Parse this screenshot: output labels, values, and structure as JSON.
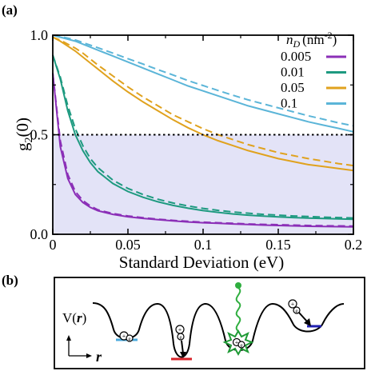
{
  "panel_a_label": "(a)",
  "panel_b_label": "(b)",
  "chart_data": {
    "type": "line",
    "title": "",
    "xlabel": "Standard Deviation (eV)",
    "ylabel_main": "g",
    "ylabel_sub": "2",
    "ylabel_tail": "(0)",
    "xlim": [
      0,
      0.2
    ],
    "ylim": [
      0,
      1.0
    ],
    "x_ticks": [
      0,
      0.05,
      0.1,
      0.15,
      0.2
    ],
    "x_tick_labels": [
      "0",
      "0.05",
      "0.1",
      "0.15",
      "0.2"
    ],
    "y_ticks": [
      0,
      0.5,
      1.0
    ],
    "y_tick_labels": [
      "0.0",
      "0.5",
      "1.0"
    ],
    "threshold": 0.5,
    "shaded_region": [
      0,
      0.5
    ],
    "shade_color": "#e3e3f7",
    "legend": {
      "title_main": "n",
      "title_sub": "D",
      "title_unit": "(nm",
      "title_exp": "-2",
      "title_close": ")",
      "placement": "top-right"
    },
    "x": [
      0,
      0.005,
      0.01,
      0.015,
      0.02,
      0.025,
      0.03,
      0.04,
      0.05,
      0.06,
      0.07,
      0.08,
      0.09,
      0.1,
      0.11,
      0.12,
      0.13,
      0.14,
      0.15,
      0.16,
      0.17,
      0.18,
      0.19,
      0.2
    ],
    "series": [
      {
        "name": "0.005",
        "color": "#8b2fb7",
        "solid": [
          0.81,
          0.44,
          0.28,
          0.2,
          0.16,
          0.135,
          0.118,
          0.1,
          0.088,
          0.08,
          0.073,
          0.067,
          0.062,
          0.058,
          0.055,
          0.052,
          0.049,
          0.046,
          0.044,
          0.042,
          0.04,
          0.039,
          0.038,
          0.037
        ],
        "dashed": [
          0.81,
          0.47,
          0.3,
          0.215,
          0.17,
          0.142,
          0.123,
          0.104,
          0.092,
          0.083,
          0.076,
          0.07,
          0.065,
          0.061,
          0.058,
          0.055,
          0.052,
          0.05,
          0.048,
          0.046,
          0.044,
          0.043,
          0.042,
          0.041
        ]
      },
      {
        "name": "0.01",
        "color": "#1e9a80",
        "solid": [
          0.9,
          0.78,
          0.62,
          0.5,
          0.42,
          0.36,
          0.315,
          0.255,
          0.215,
          0.186,
          0.163,
          0.145,
          0.131,
          0.119,
          0.11,
          0.102,
          0.096,
          0.091,
          0.087,
          0.084,
          0.081,
          0.079,
          0.077,
          0.075
        ],
        "dashed": [
          0.9,
          0.79,
          0.645,
          0.53,
          0.445,
          0.38,
          0.335,
          0.272,
          0.23,
          0.2,
          0.176,
          0.157,
          0.142,
          0.13,
          0.12,
          0.112,
          0.106,
          0.1,
          0.096,
          0.092,
          0.089,
          0.086,
          0.084,
          0.082
        ]
      },
      {
        "name": "0.05",
        "color": "#e0a21e",
        "solid": [
          0.99,
          0.97,
          0.945,
          0.92,
          0.89,
          0.86,
          0.83,
          0.77,
          0.715,
          0.665,
          0.62,
          0.575,
          0.535,
          0.5,
          0.47,
          0.445,
          0.42,
          0.4,
          0.38,
          0.365,
          0.35,
          0.34,
          0.33,
          0.32
        ],
        "dashed": [
          0.99,
          0.975,
          0.955,
          0.935,
          0.91,
          0.88,
          0.85,
          0.795,
          0.74,
          0.69,
          0.645,
          0.6,
          0.565,
          0.53,
          0.5,
          0.475,
          0.45,
          0.43,
          0.41,
          0.395,
          0.38,
          0.368,
          0.355,
          0.345
        ]
      },
      {
        "name": "0.1",
        "color": "#5bb5d8",
        "solid": [
          1.0,
          0.99,
          0.98,
          0.97,
          0.955,
          0.94,
          0.925,
          0.895,
          0.865,
          0.835,
          0.805,
          0.775,
          0.745,
          0.72,
          0.695,
          0.67,
          0.645,
          0.625,
          0.605,
          0.585,
          0.565,
          0.548,
          0.532,
          0.515
        ],
        "dashed": [
          1.0,
          0.993,
          0.985,
          0.976,
          0.963,
          0.95,
          0.937,
          0.91,
          0.882,
          0.855,
          0.827,
          0.8,
          0.772,
          0.747,
          0.722,
          0.698,
          0.675,
          0.655,
          0.635,
          0.615,
          0.595,
          0.578,
          0.56,
          0.545
        ]
      }
    ]
  },
  "diagram_b": {
    "potential_label_main": "V(",
    "potential_label_var": "r",
    "potential_label_close": ")",
    "axis_label": "r",
    "electron_symbol": "e",
    "exciton_symbol": "+",
    "line_colors": [
      "#49a9dd",
      "#d8232a",
      "#1e9a35",
      "#1f1fb0"
    ]
  }
}
